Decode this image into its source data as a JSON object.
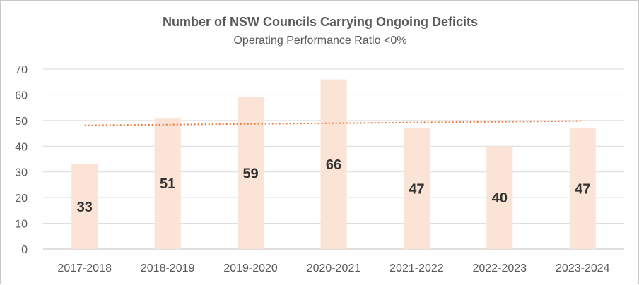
{
  "chart_data": {
    "type": "bar",
    "title": "Number of NSW Councils Carrying Ongoing Deficits",
    "subtitle": "Operating Performance Ratio <0%",
    "categories": [
      "2017-2018",
      "2018-2019",
      "2019-2020",
      "2020-2021",
      "2021-2022",
      "2022-2023",
      "2023-2024"
    ],
    "values": [
      33,
      51,
      59,
      66,
      47,
      40,
      47
    ],
    "data_labels": [
      "33",
      "51",
      "59",
      "66",
      "47",
      "40",
      "47"
    ],
    "ylim": [
      0,
      70
    ],
    "yticks": [
      0,
      10,
      20,
      30,
      40,
      50,
      60,
      70
    ],
    "grid": true,
    "trendline": {
      "type": "linear",
      "style": "dotted",
      "start": 48.1,
      "end": 49.8
    },
    "colors": {
      "bar": "#fbe3d6",
      "trendline": "#e97132",
      "grid": "#d9d9d9",
      "text": "#595959"
    }
  }
}
